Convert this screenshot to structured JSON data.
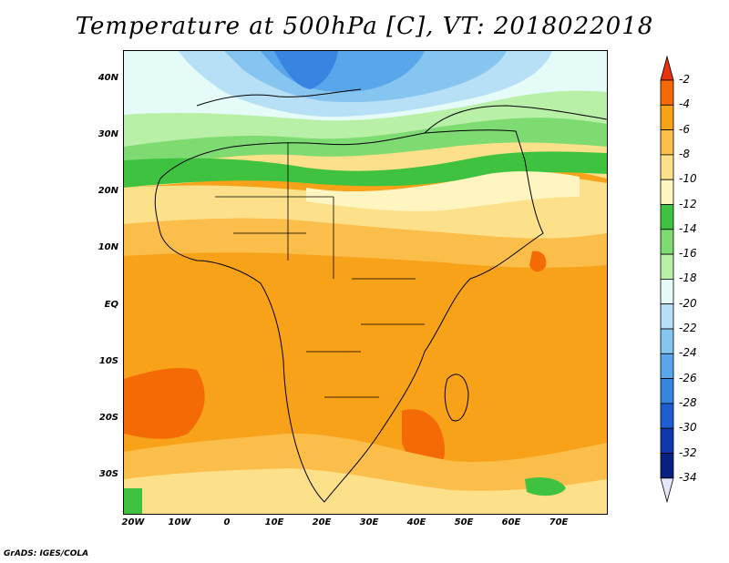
{
  "title": "Temperature at 500hPa [C], VT: 2018022018",
  "credit": "GrADS: IGES/COLA",
  "lat_labels": [
    "40N",
    "30N",
    "20N",
    "10N",
    "EQ",
    "10S",
    "20S",
    "30S"
  ],
  "lon_labels": [
    "20W",
    "10W",
    "0",
    "10E",
    "20E",
    "30E",
    "40E",
    "50E",
    "60E",
    "70E"
  ],
  "colorbar": {
    "labels": [
      "-2",
      "-4",
      "-6",
      "-8",
      "-10",
      "-12",
      "-14",
      "-16",
      "-18",
      "-20",
      "-22",
      "-24",
      "-26",
      "-28",
      "-30",
      "-32",
      "-34"
    ],
    "colors": [
      "#e8320a",
      "#f46b06",
      "#f8a21a",
      "#fbbe4a",
      "#fde08a",
      "#fff5c0",
      "#3fc23f",
      "#7ddb72",
      "#b9f0a8",
      "#e4fbf7",
      "#b7e0f7",
      "#86c5f0",
      "#5aa6ea",
      "#3785e0",
      "#1c5ed0",
      "#0c39b0",
      "#0a2080",
      "#e6e6fa"
    ],
    "top_color": "#e8320a",
    "bottom_color": "#e6e6fa"
  }
}
